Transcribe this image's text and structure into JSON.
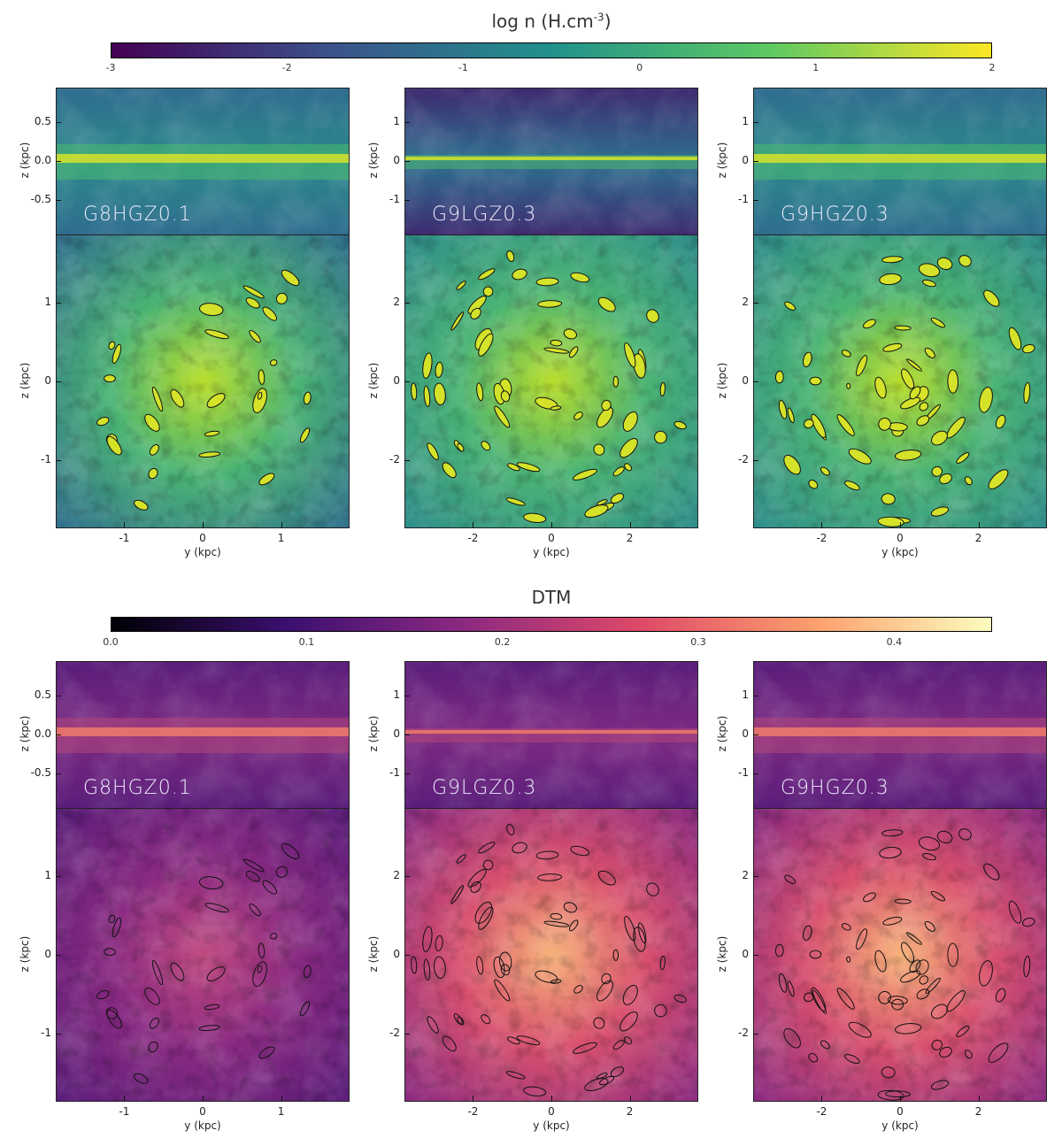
{
  "chart_data": [
    {
      "type": "heatmap",
      "quantity": "gas density",
      "colorbar": {
        "title": "log n (H.cm",
        "title_sup": "-3",
        "title_end": ")",
        "colormap": "viridis",
        "range": [
          -3,
          2
        ],
        "ticks": [
          "-3",
          "-2",
          "-1",
          "0",
          "1",
          "2"
        ],
        "colors": [
          "#440154",
          "#3b528b",
          "#21918c",
          "#5ec962",
          "#fde725"
        ]
      },
      "contours": true
    },
    {
      "type": "heatmap",
      "quantity": "DTM",
      "colorbar": {
        "title": "DTM",
        "colormap": "magma",
        "range": [
          0.0,
          0.45
        ],
        "ticks": [
          "0.0",
          "0.1",
          "0.2",
          "0.3",
          "0.4"
        ],
        "tick_values": [
          0.0,
          0.1,
          0.2,
          0.3,
          0.4
        ],
        "colors": [
          "#000004",
          "#3b0f70",
          "#8c2981",
          "#de4968",
          "#fe9f6d",
          "#fcfdbf"
        ]
      },
      "contours": true
    }
  ],
  "panels": [
    {
      "label": "G8HGZ0.1",
      "xlim": [
        -1.875,
        1.875
      ],
      "zlim_edge": [
        -0.94,
        0.94
      ],
      "x_ticks": [
        "-1",
        "0",
        "1"
      ],
      "x_tick_values": [
        -1,
        0,
        1
      ],
      "edge_ticks": [
        "0.5",
        "0.0",
        "-0.5"
      ],
      "edge_tick_values": [
        0.5,
        0,
        -0.5
      ],
      "face_ticks": [
        "1",
        "0",
        "-1"
      ],
      "face_tick_values": [
        1,
        0,
        -1
      ]
    },
    {
      "label": "G9LGZ0.3",
      "xlim": [
        -3.75,
        3.75
      ],
      "zlim_edge": [
        -1.88,
        1.88
      ],
      "x_ticks": [
        "-2",
        "0",
        "2"
      ],
      "x_tick_values": [
        -2,
        0,
        2
      ],
      "edge_ticks": [
        "1",
        "0",
        "-1"
      ],
      "edge_tick_values": [
        1,
        0,
        -1
      ],
      "face_ticks": [
        "2",
        "0",
        "-2"
      ],
      "face_tick_values": [
        2,
        0,
        -2
      ]
    },
    {
      "label": "G9HGZ0.3",
      "xlim": [
        -3.75,
        3.75
      ],
      "zlim_edge": [
        -1.88,
        1.88
      ],
      "x_ticks": [
        "-2",
        "0",
        "2"
      ],
      "x_tick_values": [
        -2,
        0,
        2
      ],
      "edge_ticks": [
        "1",
        "0",
        "-1"
      ],
      "edge_tick_values": [
        1,
        0,
        -1
      ],
      "face_ticks": [
        "2",
        "0",
        "-2"
      ],
      "face_tick_values": [
        2,
        0,
        -2
      ]
    }
  ],
  "axes": {
    "xlabel": "y (kpc)",
    "ylabel": "z (kpc)"
  }
}
